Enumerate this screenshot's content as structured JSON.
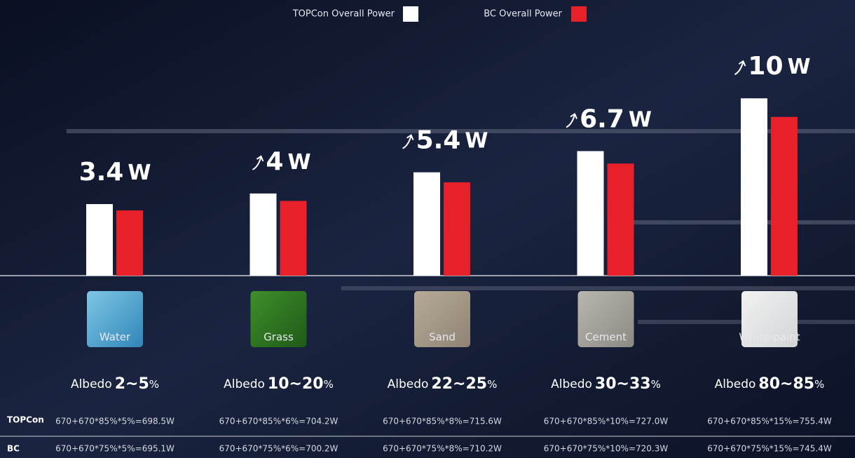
{
  "chart_data": {
    "type": "bar",
    "categories": [
      "Water",
      "Grass",
      "Sand",
      "Cement",
      "White-paint"
    ],
    "series": [
      {
        "name": "TOPCon Overall Power",
        "row_label": "TOPCon",
        "color": "#ffffff",
        "values": [
          698.5,
          704.2,
          715.6,
          727.0,
          755.4
        ],
        "value_labels": [
          "670+670*85%*5%=698.5W",
          "670+670*85%*6%=704.2W",
          "670+670*85%*8%=715.6W",
          "670+670*85%*10%=727.0W",
          "670+670*85%*15%=755.4W"
        ]
      },
      {
        "name": "BC Overall Power",
        "row_label": "BC",
        "color": "#e8202a",
        "values": [
          695.1,
          700.2,
          710.2,
          720.3,
          745.4
        ],
        "value_labels": [
          "670+670*75%*5%=695.1W",
          "670+670*75%*6%=700.2W",
          "670+670*75%*8%=710.2W",
          "670+670*75%*10%=720.3W",
          "670+670*75%*15%=745.4W"
        ]
      }
    ],
    "gains": [
      "3.4",
      "4",
      "5.4",
      "6.7",
      "10"
    ],
    "gain_unit": "W",
    "albedo_label": "Albedo",
    "albedo": [
      "2~5",
      "10~20",
      "22~25",
      "30~33",
      "80~85"
    ],
    "albedo_unit": "%",
    "ylim": [
      660,
      760
    ]
  }
}
